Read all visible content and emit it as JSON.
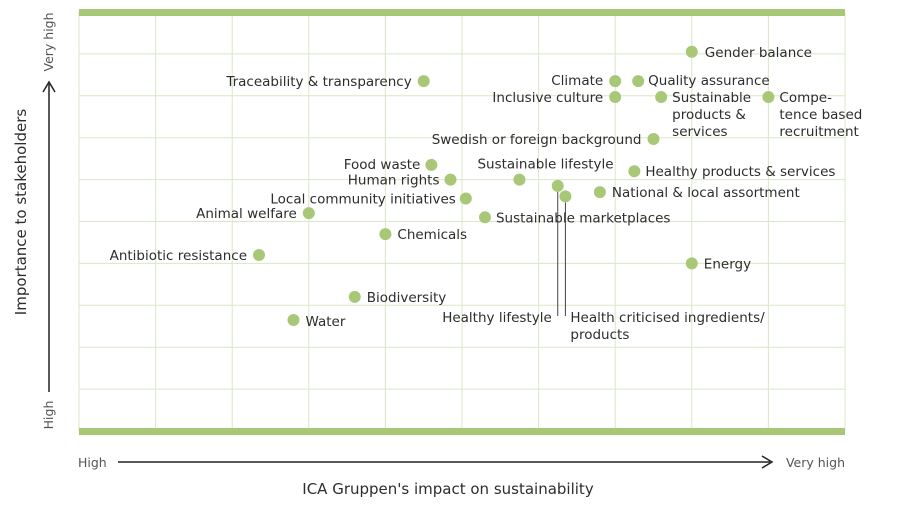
{
  "chart_data": {
    "type": "scatter",
    "xlabel": "ICA Gruppen's impact on sustainability",
    "ylabel": "Importance to stakeholders",
    "x_axis": {
      "start_label": "High",
      "end_label": "Very high"
    },
    "y_axis": {
      "start_label": "High",
      "end_label": "Very high"
    },
    "xlim": [
      0,
      10
    ],
    "ylim": [
      0,
      10
    ],
    "grid": true,
    "colors": {
      "point": "#a8c878",
      "band": "#a8c878",
      "grid": "#d9e7c5",
      "text": "#2d2d2d"
    },
    "points": [
      {
        "label": "Gender balance",
        "x": 8.0,
        "y": 9.05
      },
      {
        "label": "Climate",
        "x": 7.0,
        "y": 8.35
      },
      {
        "label": "Quality assurance",
        "x": 7.3,
        "y": 8.35
      },
      {
        "label": "Inclusive culture",
        "x": 7.0,
        "y": 7.97
      },
      {
        "label": "Sustainable products & services",
        "x": 7.6,
        "y": 7.97
      },
      {
        "label": "Compe-tence based recruitment",
        "x": 9.0,
        "y": 7.97
      },
      {
        "label": "Traceability & transparency",
        "x": 4.5,
        "y": 8.35
      },
      {
        "label": "Swedish or foreign background",
        "x": 7.5,
        "y": 6.97
      },
      {
        "label": "Food waste",
        "x": 4.6,
        "y": 6.35
      },
      {
        "label": "Sustainable lifestyle",
        "x": 5.75,
        "y": 6.0
      },
      {
        "label": "Human rights",
        "x": 4.85,
        "y": 6.0
      },
      {
        "label": "Healthy products & services",
        "x": 7.25,
        "y": 6.2
      },
      {
        "label": "Local community initiatives",
        "x": 5.05,
        "y": 5.55
      },
      {
        "label": "National & local assortment",
        "x": 6.8,
        "y": 5.7
      },
      {
        "label": "Animal welfare",
        "x": 3.0,
        "y": 5.2
      },
      {
        "label": "Sustainable marketplaces",
        "x": 5.3,
        "y": 5.1
      },
      {
        "label": "Chemicals",
        "x": 4.0,
        "y": 4.7
      },
      {
        "label": "Antibiotic resistance",
        "x": 2.35,
        "y": 4.2
      },
      {
        "label": "Energy",
        "x": 8.0,
        "y": 4.0
      },
      {
        "label": "Biodiversity",
        "x": 3.6,
        "y": 3.2
      },
      {
        "label": "Water",
        "x": 2.8,
        "y": 2.65
      },
      {
        "label": "Healthy lifestyle",
        "x": 6.25,
        "y": 5.85
      },
      {
        "label": "Health criticised ingredients/ products",
        "x": 6.35,
        "y": 5.6
      }
    ]
  }
}
